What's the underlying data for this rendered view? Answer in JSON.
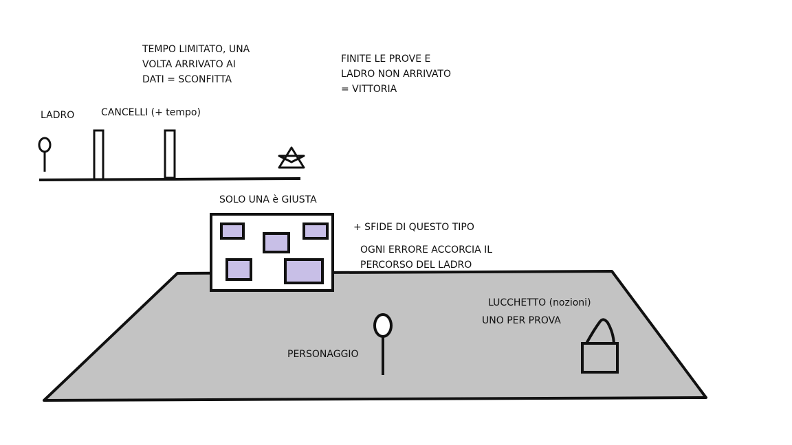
{
  "top_sketch": {
    "thief_label": "LADRO",
    "gates_label": "CANCELLI (+ tempo)",
    "time_note": [
      "TEMPO LIMITATO, UNA",
      "VOLTA ARRIVATO AI",
      "DATI = SCONFITTA"
    ],
    "win_note": [
      "FINITE LE PROVE E",
      "LADRO NON ARRIVATO",
      "= VITTORIA"
    ]
  },
  "quiz_panel": {
    "title": "SOLO UNA è GIUSTA",
    "more_label": "+ SFIDE DI QUESTO TIPO",
    "error_note": [
      "OGNI ERRORE ACCORCIA IL",
      "PERCORSO DEL LADRO"
    ]
  },
  "floor": {
    "character_label": "PERSONAGGIO",
    "lock_label": "LUCCHETTO (nozioni)",
    "lock_note": "UNO PER PROVA"
  },
  "colors": {
    "stroke": "#111111",
    "floor_fill": "#c3c3c3",
    "answer_box_fill": "#c8bfe7",
    "panel_fill": "#ffffff"
  }
}
